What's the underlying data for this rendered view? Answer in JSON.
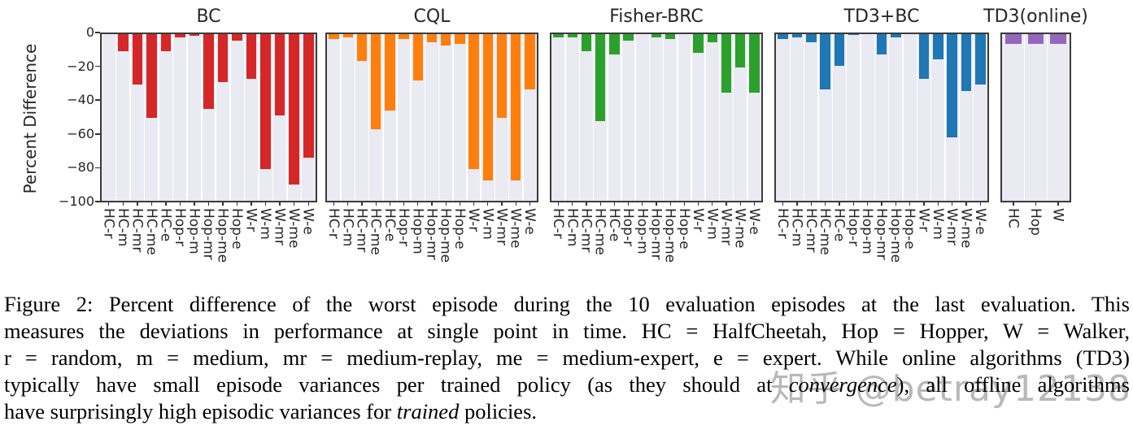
{
  "figure": {
    "ylabel": "Percent Difference",
    "yticks": [
      "0",
      "−20",
      "−40",
      "−60",
      "−80",
      "−100"
    ],
    "ylim": [
      -100,
      0
    ]
  },
  "chart_data": [
    {
      "type": "bar",
      "title": "BC",
      "color": "#d62728",
      "categories": [
        "HC-r",
        "HC-m",
        "HC-mr",
        "HC-me",
        "HC-e",
        "Hop-r",
        "Hop-m",
        "Hop-mr",
        "Hop-me",
        "Hop-e",
        "W-r",
        "W-m",
        "W-mr",
        "W-me",
        "W-e"
      ],
      "values": [
        0,
        -10,
        -30,
        -50,
        -10,
        -2,
        -1,
        -45,
        -29,
        -4,
        -27,
        -81,
        -49,
        -90,
        -74
      ],
      "ylabel": "Percent Difference",
      "ylim": [
        -100,
        0
      ],
      "grid": "vertical-white-on-lavender"
    },
    {
      "type": "bar",
      "title": "CQL",
      "color": "#ff7f0e",
      "categories": [
        "HC-r",
        "HC-m",
        "HC-mr",
        "HC-me",
        "HC-e",
        "Hop-r",
        "Hop-m",
        "Hop-mr",
        "Hop-me",
        "Hop-e",
        "W-r",
        "W-m",
        "W-mr",
        "W-me",
        "W-e"
      ],
      "values": [
        -3,
        -2,
        -16,
        -57,
        -46,
        -3,
        -28,
        -5,
        -7,
        -6,
        -81,
        -88,
        -50,
        -88,
        -33
      ],
      "ylim": [
        -100,
        0
      ]
    },
    {
      "type": "bar",
      "title": "Fisher-BRC",
      "color": "#2ca02c",
      "categories": [
        "HC-r",
        "HC-m",
        "HC-mr",
        "HC-me",
        "HC-e",
        "Hop-r",
        "Hop-m",
        "Hop-mr",
        "Hop-me",
        "Hop-e",
        "W-r",
        "W-m",
        "W-mr",
        "W-me",
        "W-e"
      ],
      "values": [
        -2,
        -2,
        -10,
        -52,
        -12,
        -4,
        0,
        -2,
        -3,
        0,
        -11,
        -5,
        -35,
        -20,
        -35
      ],
      "ylim": [
        -100,
        0
      ]
    },
    {
      "type": "bar",
      "title": "TD3+BC",
      "color": "#1f77b4",
      "categories": [
        "HC-r",
        "HC-m",
        "HC-mr",
        "HC-me",
        "HC-e",
        "Hop-r",
        "Hop-m",
        "Hop-mr",
        "Hop-me",
        "Hop-e",
        "W-r",
        "W-m",
        "W-mr",
        "W-me",
        "W-e"
      ],
      "values": [
        -3,
        -2,
        -5,
        -33,
        -19,
        -0.5,
        0,
        -12,
        -2,
        0,
        -27,
        -15,
        -62,
        -34,
        -30
      ],
      "ylim": [
        -100,
        0
      ]
    },
    {
      "type": "bar",
      "title": "TD3(online)",
      "color": "#9467bd",
      "categories": [
        "HC",
        "Hop",
        "W"
      ],
      "values": [
        -6,
        -6,
        -6
      ],
      "ylim": [
        -100,
        0
      ]
    }
  ],
  "caption": {
    "line1": "Figure 2: Percent difference of the worst episode during the 10 evaluation episodes at the last evaluation. This",
    "line2": "measures the deviations in performance at single point in time. HC = HalfCheetah, Hop = Hopper, W = Walker,",
    "line3": "r = random, m = medium, mr = medium-replay, me = medium-expert, e = expert. While online algorithms (TD3)",
    "line4_pre": "typically have small episode variances per trained policy (as they should at ",
    "line4_italic": "convergence",
    "line4_post": "), all offline algorithms",
    "line5_pre": "have surprisingly high episodic variances for ",
    "line5_italic": "trained",
    "line5_post": " policies."
  },
  "watermark": "知乎 @betray12138"
}
